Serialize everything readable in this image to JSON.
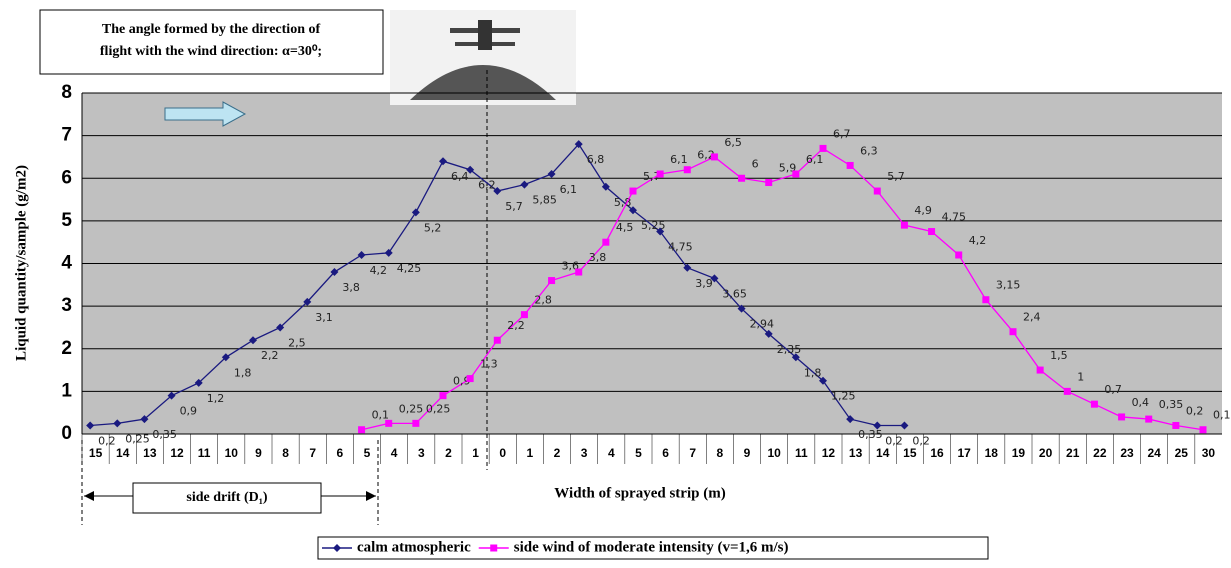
{
  "chart_data": {
    "type": "line",
    "annotation": [
      "The angle formed by the direction of",
      "flight with the wind direction: α=30⁰;"
    ],
    "y_label": "Liquid quantity/sample (g/m2)",
    "x_label": "Width of sprayed strip (m)",
    "side_label": "side drift (D₁)",
    "categories": [
      "15",
      "14",
      "13",
      "12",
      "11",
      "10",
      "9",
      "8",
      "7",
      "6",
      "5",
      "4",
      "3",
      "2",
      "1",
      "0",
      "1",
      "2",
      "3",
      "4",
      "5",
      "6",
      "7",
      "8",
      "9",
      "10",
      "11",
      "12",
      "13",
      "14",
      "15",
      "16",
      "17",
      "18",
      "19",
      "20",
      "21",
      "22",
      "23",
      "24",
      "25",
      "30"
    ],
    "ylim": [
      0,
      8
    ],
    "yticks": [
      0,
      1,
      2,
      3,
      4,
      5,
      6,
      7,
      8
    ],
    "grid": true,
    "series": [
      {
        "name": "calm atmospheric",
        "color": "#1a1a80",
        "values": [
          0.2,
          0.25,
          0.35,
          0.9,
          1.2,
          1.8,
          2.2,
          2.5,
          3.1,
          3.8,
          4.2,
          4.25,
          5.2,
          6.4,
          6.2,
          5.7,
          5.85,
          6.1,
          6.8,
          5.8,
          5.25,
          4.75,
          3.9,
          3.65,
          2.94,
          2.35,
          1.8,
          1.25,
          0.35,
          0.2,
          0.2,
          null,
          null,
          null,
          null,
          null,
          null,
          null,
          null,
          null,
          null,
          null
        ],
        "value_labels": [
          "0,2",
          "0,25",
          "0,35",
          "0,9",
          "1,2",
          "1,8",
          "2,2",
          "2,5",
          "3,1",
          "3,8",
          "4,2",
          "4,25",
          "5,2",
          "6,4",
          "6,2",
          "5,7",
          "5,85",
          "6,1",
          "6,8",
          "5,8",
          "5,25",
          "4,75",
          "3,9",
          "3,65",
          "2,94",
          "2,35",
          "1,8",
          "1,25",
          "0,35",
          "0,2",
          "0,2",
          null,
          null,
          null,
          null,
          null,
          null,
          null,
          null,
          null,
          null,
          null
        ]
      },
      {
        "name": "side wind of moderate intensity (v=1,6 m/s)",
        "color": "#ff00ff",
        "values": [
          null,
          null,
          null,
          null,
          null,
          null,
          null,
          null,
          null,
          null,
          0.1,
          0.25,
          0.25,
          0.9,
          1.3,
          2.2,
          2.8,
          3.6,
          3.8,
          4.5,
          5.7,
          6.1,
          6.2,
          6.5,
          6,
          5.9,
          6.1,
          6.7,
          6.3,
          5.7,
          4.9,
          4.75,
          4.2,
          3.15,
          2.4,
          1.5,
          1,
          0.7,
          0.4,
          0.35,
          0.2,
          0.1
        ],
        "value_labels": [
          null,
          null,
          null,
          null,
          null,
          null,
          null,
          null,
          null,
          null,
          "0,1",
          "0,25",
          "0,25",
          "0,9",
          "1,3",
          "2,2",
          "2,8",
          "3,6",
          "3,8",
          "4,5",
          "5,7",
          "6,1",
          "6,2",
          "6,5",
          "6",
          "5,9",
          "6,1",
          "6,7",
          "6,3",
          "5,7",
          "4,9",
          "4,75",
          "4,2",
          "3,15",
          "2,4",
          "1,5",
          "1",
          "0,7",
          "0,4",
          "0,35",
          "0,2",
          "0,1"
        ]
      }
    ]
  }
}
